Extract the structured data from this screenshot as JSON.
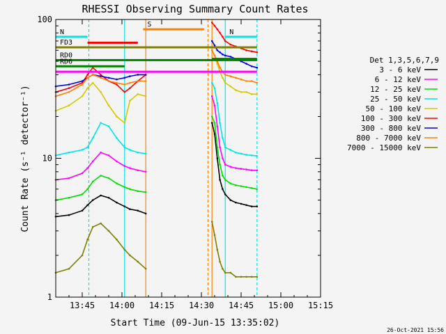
{
  "chart_data": {
    "type": "line",
    "title": "RHESSI Observing Summary Count Rates",
    "xlabel": "Start Time (09-Jun-15 13:35:02)",
    "ylabel": "Count Rate (s⁻¹ detector⁻¹)",
    "y_scale": "log",
    "ylim": [
      1,
      100
    ],
    "xlim": [
      "13:35",
      "15:15"
    ],
    "x_ticks": [
      "13:45",
      "14:00",
      "14:15",
      "14:30",
      "14:45",
      "15:00",
      "15:15"
    ],
    "y_ticks": [
      "1",
      "10",
      "100"
    ],
    "timestamp": "26-Oct-2021 15:56",
    "legend": {
      "placement": "right",
      "header": "Det 1,3,5,6,7,9",
      "entries": [
        {
          "label": "3 - 6 keV",
          "color": "#000000"
        },
        {
          "label": "6 - 12 keV",
          "color": "#ff00ff"
        },
        {
          "label": "12 - 25 keV",
          "color": "#00dd00"
        },
        {
          "label": "25 - 50 keV",
          "color": "#00e5e5"
        },
        {
          "label": "50 - 100 keV",
          "color": "#d4c800"
        },
        {
          "label": "100 - 300 keV",
          "color": "#ff0000"
        },
        {
          "label": "300 - 800 keV",
          "color": "#0000dd"
        },
        {
          "label": "800 - 7000 keV",
          "color": "#ff8000"
        },
        {
          "label": "7000 - 15000 keV",
          "color": "#7f7f00"
        }
      ]
    },
    "flags": [
      {
        "label": "N",
        "minutes": [
          0,
          12
        ],
        "y": 75,
        "color": "#00e5e5"
      },
      {
        "label": "",
        "minutes": [
          12,
          31
        ],
        "y": 68,
        "color": "#ff0000"
      },
      {
        "label": "S",
        "minutes": [
          33,
          56
        ],
        "y": 85,
        "color": "#ff8000"
      },
      {
        "label": "FD3",
        "minutes": [
          0,
          76
        ],
        "y": 63,
        "color": "#7f7f00"
      },
      {
        "label": "RD0",
        "minutes": [
          0,
          76
        ],
        "y": 51,
        "color": "#007f00"
      },
      {
        "label": "RD6",
        "minutes": [
          0,
          26
        ],
        "y": 46,
        "color": "#007f00"
      },
      {
        "label": "",
        "minutes": [
          0,
          76
        ],
        "y": 42,
        "color": "#ff00ff"
      },
      {
        "label": "N",
        "minutes": [
          64,
          76
        ],
        "y": 75,
        "color": "#00e5e5"
      },
      {
        "label": "",
        "minutes": [
          59,
          76
        ],
        "y": 52,
        "color": "#007f00"
      }
    ],
    "vlines": [
      {
        "minutes": 12.5,
        "color": "#00e5e5",
        "style": "dashed"
      },
      {
        "minutes": 26,
        "color": "#00e5e5",
        "style": "solid"
      },
      {
        "minutes": 34,
        "color": "#ff8000",
        "style": "solid"
      },
      {
        "minutes": 57.5,
        "color": "#ff8000",
        "style": "dashed"
      },
      {
        "minutes": 59,
        "color": "#ff8000",
        "style": "solid"
      },
      {
        "minutes": 64,
        "color": "#00e5e5",
        "style": "solid"
      },
      {
        "minutes": 76,
        "color": "#00e5e5",
        "style": "dashed"
      }
    ],
    "series": [
      {
        "name": "3 - 6 keV",
        "color": "#000000",
        "segments": [
          {
            "x": [
              0,
              5,
              10,
              12,
              14,
              17,
              20,
              23,
              26,
              28,
              31,
              34
            ],
            "y": [
              3.8,
              3.9,
              4.2,
              4.6,
              5.0,
              5.4,
              5.2,
              4.8,
              4.5,
              4.3,
              4.2,
              4.0
            ]
          },
          {
            "x": [
              59,
              60,
              61,
              62,
              63,
              64,
              66,
              68,
              70,
              72,
              74,
              76
            ],
            "y": [
              18,
              15,
              10,
              7,
              6,
              5.5,
              5.0,
              4.8,
              4.7,
              4.6,
              4.5,
              4.5
            ]
          }
        ]
      },
      {
        "name": "6 - 12 keV",
        "color": "#ff00ff",
        "segments": [
          {
            "x": [
              0,
              5,
              10,
              12,
              14,
              17,
              20,
              23,
              26,
              28,
              31,
              34
            ],
            "y": [
              7.0,
              7.2,
              7.8,
              8.5,
              9.5,
              11,
              10.5,
              9.5,
              8.8,
              8.5,
              8.2,
              8.0
            ]
          },
          {
            "x": [
              59,
              60,
              61,
              62,
              63,
              64,
              66,
              68,
              70,
              72,
              74,
              76
            ],
            "y": [
              28,
              24,
              17,
              12,
              10,
              9,
              8.7,
              8.5,
              8.4,
              8.3,
              8.2,
              8.2
            ]
          }
        ]
      },
      {
        "name": "12 - 25 keV",
        "color": "#00dd00",
        "segments": [
          {
            "x": [
              0,
              5,
              10,
              12,
              14,
              17,
              20,
              23,
              26,
              28,
              31,
              34
            ],
            "y": [
              5.0,
              5.2,
              5.5,
              6.0,
              6.8,
              7.5,
              7.2,
              6.6,
              6.2,
              6.0,
              5.8,
              5.7
            ]
          },
          {
            "x": [
              59,
              60,
              61,
              62,
              63,
              64,
              66,
              68,
              70,
              72,
              74,
              76
            ],
            "y": [
              20,
              18,
              12,
              9,
              7.5,
              7,
              6.6,
              6.4,
              6.3,
              6.2,
              6.1,
              6.0
            ]
          }
        ]
      },
      {
        "name": "25 - 50 keV",
        "color": "#00e5e5",
        "segments": [
          {
            "x": [
              0,
              5,
              10,
              12,
              14,
              17,
              20,
              23,
              26,
              28,
              31,
              34
            ],
            "y": [
              10.5,
              11,
              11.5,
              12,
              14,
              18,
              17,
              14,
              12,
              11.5,
              11,
              10.8
            ]
          },
          {
            "x": [
              59,
              60,
              61,
              62,
              63,
              64,
              66,
              68,
              70,
              72,
              74,
              76
            ],
            "y": [
              35,
              32,
              25,
              18,
              14,
              12,
              11.5,
              11,
              10.8,
              10.6,
              10.5,
              10.4
            ]
          }
        ]
      },
      {
        "name": "50 - 100 keV",
        "color": "#d4c800",
        "segments": [
          {
            "x": [
              0,
              5,
              10,
              12,
              14,
              17,
              20,
              23,
              26,
              28,
              31,
              34
            ],
            "y": [
              22,
              24,
              28,
              32,
              35,
              30,
              24,
              20,
              18,
              26,
              29,
              28
            ]
          },
          {
            "x": [
              59,
              60,
              61,
              62,
              63,
              64,
              66,
              68,
              70,
              72,
              74,
              76
            ],
            "y": [
              60,
              55,
              48,
              42,
              38,
              35,
              33,
              31,
              30,
              30,
              29,
              29
            ]
          }
        ]
      },
      {
        "name": "100 - 300 keV",
        "color": "#ff0000",
        "segments": [
          {
            "x": [
              0,
              5,
              10,
              12,
              14,
              17,
              20,
              23,
              26,
              28,
              31,
              34
            ],
            "y": [
              30,
              32,
              35,
              40,
              45,
              40,
              36,
              34,
              30,
              32,
              36,
              40
            ]
          },
          {
            "x": [
              59,
              60,
              61,
              62,
              63,
              64,
              66,
              68,
              70,
              72,
              74,
              76
            ],
            "y": [
              95,
              90,
              85,
              80,
              75,
              70,
              66,
              64,
              62,
              60,
              59,
              58
            ]
          }
        ]
      },
      {
        "name": "300 - 800 keV",
        "color": "#0000dd",
        "segments": [
          {
            "x": [
              0,
              5,
              10,
              12,
              14,
              17,
              20,
              23,
              26,
              28,
              31,
              34
            ],
            "y": [
              33,
              34,
              36,
              38,
              40,
              39,
              38,
              37,
              38,
              39,
              40,
              40
            ]
          },
          {
            "x": [
              59,
              60,
              61,
              62,
              63,
              64,
              66,
              68,
              70,
              72,
              74,
              76
            ],
            "y": [
              70,
              65,
              60,
              58,
              56,
              55,
              54,
              52,
              50,
              48,
              46,
              45
            ]
          }
        ]
      },
      {
        "name": "800 - 7000 keV",
        "color": "#ff8000",
        "segments": [
          {
            "x": [
              0,
              5,
              10,
              12,
              14,
              17,
              20,
              23,
              26,
              28,
              31,
              34
            ],
            "y": [
              28,
              30,
              34,
              38,
              40,
              38,
              36,
              35,
              34,
              35,
              36,
              36
            ]
          },
          {
            "x": [
              59,
              60,
              61,
              62,
              63,
              64,
              66,
              68,
              70,
              72,
              74,
              76
            ],
            "y": [
              60,
              55,
              50,
              45,
              42,
              40,
              39,
              38,
              37,
              36,
              36,
              35
            ]
          }
        ]
      },
      {
        "name": "7000 - 15000 keV",
        "color": "#7f7f00",
        "segments": [
          {
            "x": [
              0,
              5,
              10,
              12,
              14,
              17,
              20,
              23,
              26,
              28,
              31,
              34
            ],
            "y": [
              1.5,
              1.6,
              2.0,
              2.6,
              3.2,
              3.4,
              3.0,
              2.6,
              2.2,
              2.0,
              1.8,
              1.6
            ]
          },
          {
            "x": [
              59,
              60,
              61,
              62,
              63,
              64,
              66,
              68,
              70,
              72,
              74,
              76
            ],
            "y": [
              3.5,
              2.8,
              2.2,
              1.8,
              1.6,
              1.5,
              1.5,
              1.4,
              1.4,
              1.4,
              1.4,
              1.4
            ]
          }
        ]
      }
    ]
  }
}
